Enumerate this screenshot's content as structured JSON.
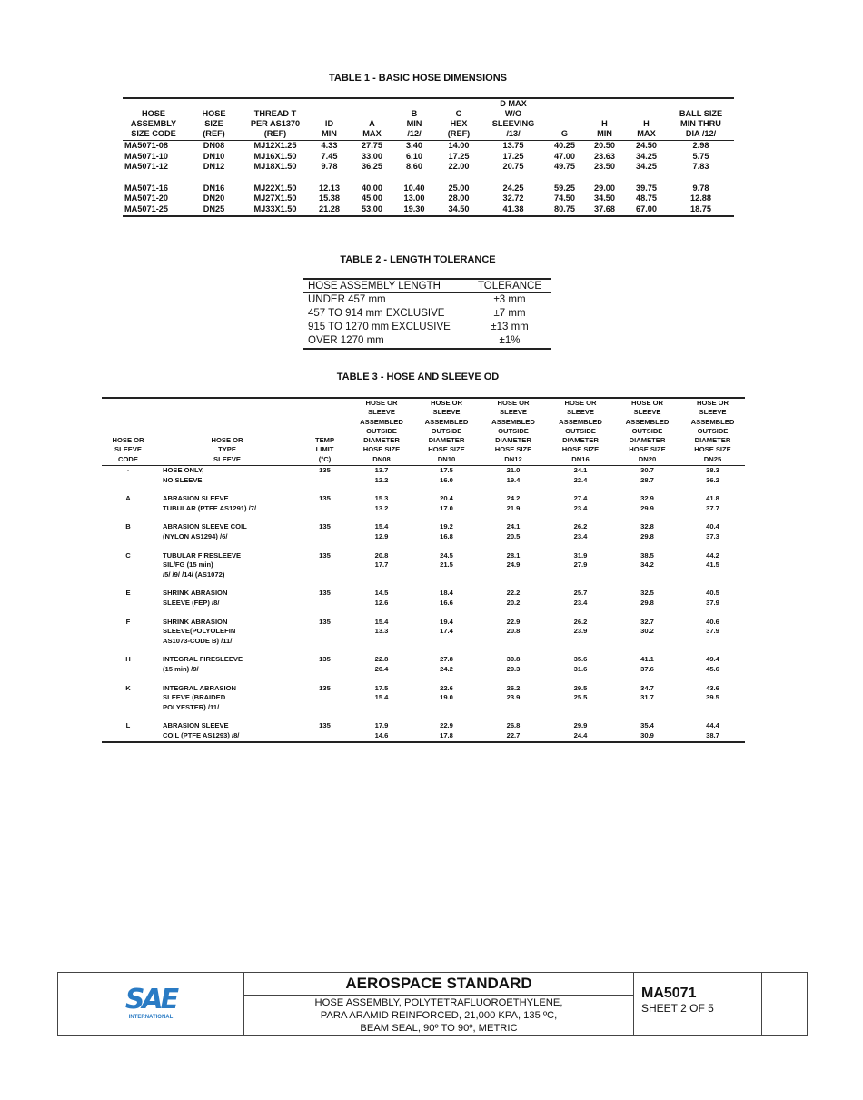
{
  "table1": {
    "title": "TABLE 1 - BASIC HOSE DIMENSIONS",
    "headers": [
      "HOSE\nASSEMBLY\nSIZE CODE",
      "HOSE\nSIZE\n(REF)",
      "THREAD T\nPER AS1370\n(REF)",
      "ID\nMIN",
      "A\nMAX",
      "B\nMIN\n/12/",
      "C\nHEX\n(REF)",
      "D MAX\nW/O\nSLEEVING\n/13/",
      "G",
      "H\nMIN",
      "H\nMAX",
      "BALL SIZE\nMIN THRU\nDIA /12/"
    ],
    "groups": [
      [
        [
          "MA5071-08",
          "DN08",
          "MJ12X1.25",
          "4.33",
          "27.75",
          "3.40",
          "14.00",
          "13.75",
          "40.25",
          "20.50",
          "24.50",
          "2.98"
        ],
        [
          "MA5071-10",
          "DN10",
          "MJ16X1.50",
          "7.45",
          "33.00",
          "6.10",
          "17.25",
          "17.25",
          "47.00",
          "23.63",
          "34.25",
          "5.75"
        ],
        [
          "MA5071-12",
          "DN12",
          "MJ18X1.50",
          "9.78",
          "36.25",
          "8.60",
          "22.00",
          "20.75",
          "49.75",
          "23.50",
          "34.25",
          "7.83"
        ]
      ],
      [
        [
          "MA5071-16",
          "DN16",
          "MJ22X1.50",
          "12.13",
          "40.00",
          "10.40",
          "25.00",
          "24.25",
          "59.25",
          "29.00",
          "39.75",
          "9.78"
        ],
        [
          "MA5071-20",
          "DN20",
          "MJ27X1.50",
          "15.38",
          "45.00",
          "13.00",
          "28.00",
          "32.72",
          "74.50",
          "34.50",
          "48.75",
          "12.88"
        ],
        [
          "MA5071-25",
          "DN25",
          "MJ33X1.50",
          "21.28",
          "53.00",
          "19.30",
          "34.50",
          "41.38",
          "80.75",
          "37.68",
          "67.00",
          "18.75"
        ]
      ]
    ]
  },
  "table2": {
    "title": "TABLE 2 - LENGTH TOLERANCE",
    "headers": [
      "HOSE ASSEMBLY LENGTH",
      "TOLERANCE"
    ],
    "rows": [
      [
        "UNDER 457 mm",
        "±3 mm"
      ],
      [
        "457 TO 914 mm EXCLUSIVE",
        "±7 mm"
      ],
      [
        "915 TO 1270 mm EXCLUSIVE",
        "±13 mm"
      ],
      [
        "OVER 1270 mm",
        "±1%"
      ]
    ]
  },
  "table3": {
    "title": "TABLE 3 - HOSE AND SLEEVE OD",
    "headers": [
      "HOSE OR\nSLEEVE\nCODE",
      "HOSE OR\nTYPE\nSLEEVE",
      "TEMP\nLIMIT\n(°C)",
      "HOSE OR\nSLEEVE\nASSEMBLED\nOUTSIDE\nDIAMETER\nHOSE SIZE\nDN08",
      "HOSE OR\nSLEEVE\nASSEMBLED\nOUTSIDE\nDIAMETER\nHOSE SIZE\nDN10",
      "HOSE OR\nSLEEVE\nASSEMBLED\nOUTSIDE\nDIAMETER\nHOSE SIZE\nDN12",
      "HOSE OR\nSLEEVE\nASSEMBLED\nOUTSIDE\nDIAMETER\nHOSE SIZE\nDN16",
      "HOSE OR\nSLEEVE\nASSEMBLED\nOUTSIDE\nDIAMETER\nHOSE SIZE\nDN20",
      "HOSE OR\nSLEEVE\nASSEMBLED\nOUTSIDE\nDIAMETER\nHOSE SIZE\nDN25"
    ],
    "rows": [
      [
        "-",
        "HOSE ONLY,\nNO SLEEVE",
        "135",
        "13.7\n12.2",
        "17.5\n16.0",
        "21.0\n19.4",
        "24.1\n22.4",
        "30.7\n28.7",
        "38.3\n36.2"
      ],
      [
        "A",
        "ABRASION SLEEVE\nTUBULAR (PTFE AS1291) /7/",
        "135",
        "15.3\n13.2",
        "20.4\n17.0",
        "24.2\n21.9",
        "27.4\n23.4",
        "32.9\n29.9",
        "41.8\n37.7"
      ],
      [
        "B",
        "ABRASION SLEEVE COIL\n(NYLON AS1294) /6/",
        "135",
        "15.4\n12.9",
        "19.2\n16.8",
        "24.1\n20.5",
        "26.2\n23.4",
        "32.8\n29.8",
        "40.4\n37.3"
      ],
      [
        "C",
        "TUBULAR FIRESLEEVE\nSIL/FG (15 min)\n/5/ /9/ /14/ (AS1072)",
        "135",
        "20.8\n17.7",
        "24.5\n21.5",
        "28.1\n24.9",
        "31.9\n27.9",
        "38.5\n34.2",
        "44.2\n41.5"
      ],
      [
        "E",
        "SHRINK ABRASION\nSLEEVE (FEP) /8/",
        "135",
        "14.5\n12.6",
        "18.4\n16.6",
        "22.2\n20.2",
        "25.7\n23.4",
        "32.5\n29.8",
        "40.5\n37.9"
      ],
      [
        "F",
        "SHRINK ABRASION\nSLEEVE(POLYOLEFIN\nAS1073-CODE B) /11/",
        "135",
        "15.4\n13.3",
        "19.4\n17.4",
        "22.9\n20.8",
        "26.2\n23.9",
        "32.7\n30.2",
        "40.6\n37.9"
      ],
      [
        "H",
        "INTEGRAL FIRESLEEVE\n(15 min) /9/",
        "135",
        "22.8\n20.4",
        "27.8\n24.2",
        "30.8\n29.3",
        "35.6\n31.6",
        "41.1\n37.6",
        "49.4\n45.6"
      ],
      [
        "K",
        "INTEGRAL ABRASION\nSLEEVE (BRAIDED\nPOLYESTER) /11/",
        "135",
        "17.5\n15.4",
        "22.6\n19.0",
        "26.2\n23.9",
        "29.5\n25.5",
        "34.7\n31.7",
        "43.6\n39.5"
      ],
      [
        "L",
        "ABRASION SLEEVE\nCOIL (PTFE AS1293) /8/",
        "135",
        "17.9\n14.6",
        "22.9\n17.8",
        "26.8\n22.7",
        "29.9\n24.4",
        "35.4\n30.9",
        "44.4\n38.7"
      ]
    ]
  },
  "footer": {
    "logo_text": "SAE",
    "logo_sub": "INTERNATIONAL",
    "standard": "AEROSPACE STANDARD",
    "description": [
      "HOSE ASSEMBLY, POLYTETRAFLUOROETHYLENE,",
      "PARA ARAMID REINFORCED, 21,000 KPA, 135 ºC,",
      "BEAM SEAL, 90º TO 90º, METRIC"
    ],
    "doc_number": "MA5071",
    "sheet": "SHEET 2 OF 5",
    "brand_color": "#2a7bc4"
  }
}
